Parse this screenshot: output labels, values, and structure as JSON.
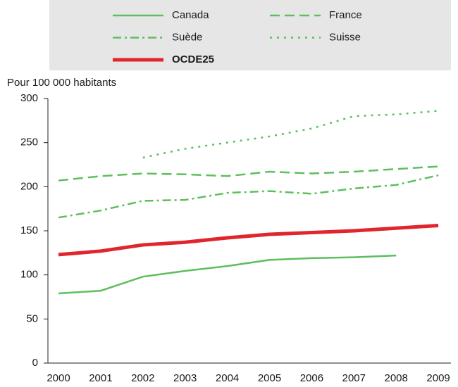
{
  "chart_data": {
    "type": "line",
    "ylabel": "Pour 100 000 habitants",
    "categories": [
      "2000",
      "2001",
      "2002",
      "2003",
      "2004",
      "2005",
      "2006",
      "2007",
      "2008",
      "2009"
    ],
    "ylim": [
      0,
      300
    ],
    "yticks": [
      0,
      50,
      100,
      150,
      200,
      250,
      300
    ],
    "series": [
      {
        "name": "Canada",
        "color": "#5cbf5c",
        "style": "solid",
        "linewidth": 2.5,
        "values": [
          79,
          82,
          98,
          104.5,
          110,
          117,
          119,
          120,
          122,
          null
        ]
      },
      {
        "name": "France",
        "color": "#5cbf5c",
        "style": "dashed",
        "linewidth": 2.5,
        "values": [
          207,
          212,
          215,
          214,
          212,
          217,
          215,
          217,
          220,
          223
        ]
      },
      {
        "name": "Suède",
        "color": "#5cbf5c",
        "style": "dashdot",
        "linewidth": 2.5,
        "values": [
          165,
          173,
          184,
          185,
          193,
          195,
          192,
          198,
          202,
          213
        ]
      },
      {
        "name": "Suisse",
        "color": "#5cbf5c",
        "style": "dotted",
        "linewidth": 2.5,
        "values": [
          null,
          null,
          233,
          243,
          250,
          257,
          266,
          280,
          282,
          286
        ]
      },
      {
        "name": "OCDE25",
        "color": "#e0262c",
        "style": "solid",
        "linewidth": 5,
        "values": [
          123,
          127,
          134,
          137,
          142,
          146,
          148,
          150,
          153,
          156
        ]
      }
    ]
  }
}
